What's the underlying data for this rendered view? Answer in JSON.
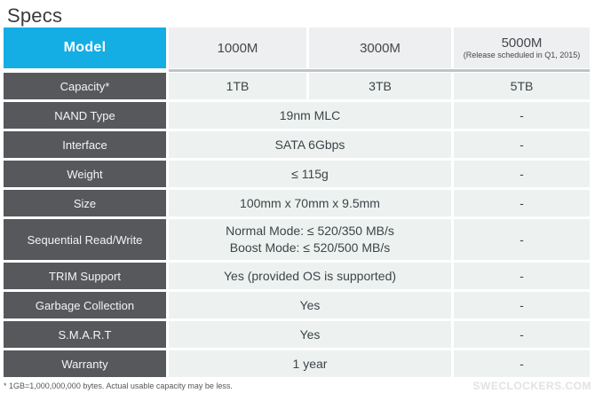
{
  "page": {
    "title": "Specs",
    "footnote": "* 1GB=1,000,000,000 bytes. Actual usable capacity may be less.",
    "watermark": "SWECLOCKERS.COM"
  },
  "colors": {
    "accent_cyan": "#14aee5",
    "label_gray": "#56585c",
    "header_cell_bg": "#edeff1",
    "body_cell_bg": "#edf2f1",
    "divider_gray": "#bdc3c7",
    "title_text": "#3b3b3b",
    "value_text": "#3e4347"
  },
  "table": {
    "header": {
      "label": "Model",
      "columns": [
        {
          "name": "1000M",
          "note": ""
        },
        {
          "name": "3000M",
          "note": ""
        },
        {
          "name": "5000M",
          "note": "(Release scheduled in Q1, 2015)"
        }
      ]
    },
    "rows": [
      {
        "label": "Capacity*",
        "cells": [
          "1TB",
          "3TB",
          "5TB"
        ]
      },
      {
        "label": "NAND Type",
        "value": "19nm MLC",
        "m5000": "-"
      },
      {
        "label": "Interface",
        "value": "SATA 6Gbps",
        "m5000": "-"
      },
      {
        "label": "Weight",
        "value": "≤ 115g",
        "m5000": "-"
      },
      {
        "label": "Size",
        "value": "100mm x 70mm x 9.5mm",
        "m5000": "-"
      },
      {
        "label": "Sequential Read/Write",
        "value_line1": "Normal Mode: ≤ 520/350 MB/s",
        "value_line2": "Boost Mode: ≤ 520/500 MB/s",
        "m5000": "-"
      },
      {
        "label": "TRIM Support",
        "value": "Yes (provided OS is supported)",
        "m5000": "-"
      },
      {
        "label": "Garbage Collection",
        "value": "Yes",
        "m5000": "-"
      },
      {
        "label": "S.M.A.R.T",
        "value": "Yes",
        "m5000": "-"
      },
      {
        "label": "Warranty",
        "value": "1 year",
        "m5000": "-"
      }
    ]
  }
}
